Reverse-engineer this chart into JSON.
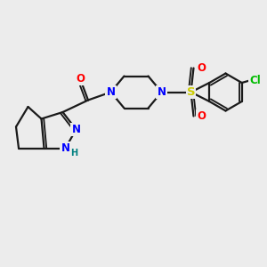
{
  "bg_color": "#ececec",
  "bond_color": "#1a1a1a",
  "bond_width": 1.6,
  "atom_colors": {
    "N": "#0000ff",
    "O": "#ff0000",
    "S": "#cccc00",
    "Cl": "#00bb00",
    "C": "#1a1a1a",
    "H": "#008080"
  },
  "font_size_atom": 8.5,
  "font_size_H": 7.0
}
